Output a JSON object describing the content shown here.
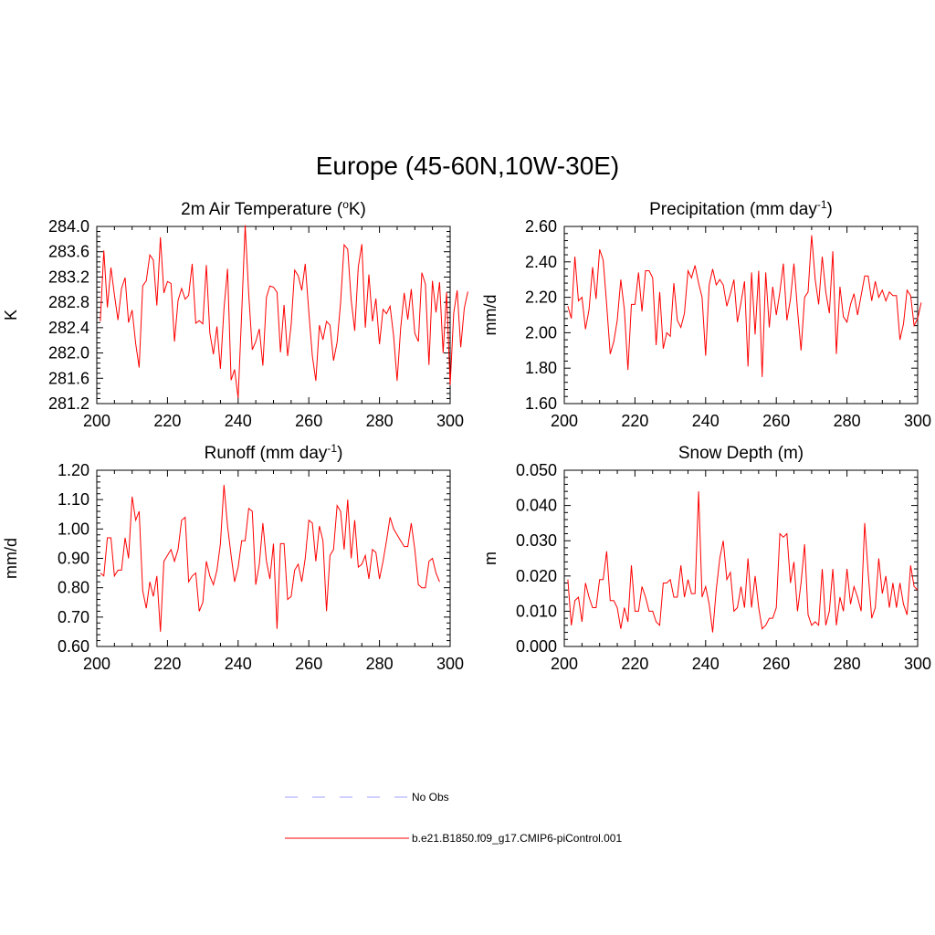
{
  "title": "Europe (45-60N,10W-30E)",
  "legend": [
    {
      "label": "No Obs",
      "color": "#a0a0ff",
      "style": "dashed"
    },
    {
      "label": "b.e21.B1850.f09_g17.CMIP6-piControl.001",
      "color": "#ff0000",
      "style": "solid"
    }
  ],
  "chart_data": [
    {
      "type": "line",
      "title": "2m Air Temperature (oK)",
      "title_parts": {
        "main": "2m Air Temperature (",
        "sup": "o",
        "after": "K)"
      },
      "xlabel": "",
      "ylabel": "K",
      "xlim": [
        200,
        300
      ],
      "ylim": [
        281.2,
        284.0
      ],
      "xticks": [
        "200",
        "220",
        "240",
        "260",
        "280",
        "300"
      ],
      "yticks": [
        "281.2",
        "281.6",
        "282.0",
        "282.4",
        "282.8",
        "283.2",
        "283.6",
        "284.0"
      ],
      "series": [
        {
          "name": "b.e21.B1850.f09_g17.CMIP6-piControl.001",
          "x_start": 201,
          "x_step": 1,
          "values": [
            282.5,
            283.62,
            282.72,
            283.35,
            282.92,
            282.52,
            283.02,
            283.19,
            282.48,
            282.68,
            282.15,
            281.77,
            283.06,
            283.14,
            283.55,
            283.47,
            282.75,
            283.83,
            282.95,
            283.13,
            283.1,
            282.18,
            282.83,
            283.02,
            282.85,
            282.91,
            283.41,
            282.47,
            282.51,
            282.46,
            283.39,
            282.32,
            281.98,
            282.42,
            281.75,
            282.7,
            283.33,
            281.57,
            281.74,
            281.29,
            282.63,
            284.02,
            282.93,
            282.05,
            282.18,
            282.38,
            281.8,
            282.88,
            283.06,
            283.04,
            282.96,
            282.01,
            282.76,
            281.95,
            282.45,
            283.31,
            283.22,
            282.99,
            283.41,
            282.65,
            281.95,
            281.56,
            282.44,
            282.21,
            282.5,
            282.44,
            281.88,
            282.17,
            282.79,
            283.71,
            283.64,
            282.84,
            282.35,
            283.36,
            283.72,
            282.4,
            283.24,
            282.5,
            282.86,
            282.14,
            282.69,
            282.62,
            282.74,
            282.27,
            281.56,
            282.39,
            282.95,
            282.53,
            283.01,
            282.31,
            282.18,
            283.27,
            283.09,
            281.81,
            283.14,
            282.64,
            283.12,
            282.0,
            282.96,
            281.49,
            282.63,
            282.99,
            282.09,
            282.71,
            282.97
          ]
        }
      ]
    },
    {
      "type": "line",
      "title": "Precipitation (mm day-1)",
      "title_parts": {
        "main": "Precipitation (mm day",
        "sup": "-1",
        "after": ")"
      },
      "xlabel": "",
      "ylabel": "mm/d",
      "xlim": [
        200,
        300
      ],
      "ylim": [
        1.6,
        2.6
      ],
      "xticks": [
        "200",
        "220",
        "240",
        "260",
        "280",
        "300"
      ],
      "yticks": [
        "1.60",
        "1.80",
        "2.00",
        "2.20",
        "2.40",
        "2.60"
      ],
      "series": [
        {
          "name": "b.e21.B1850.f09_g17.CMIP6-piControl.001",
          "x_start": 201,
          "x_step": 1,
          "values": [
            2.15,
            2.08,
            2.43,
            2.18,
            2.2,
            2.02,
            2.13,
            2.37,
            2.19,
            2.47,
            2.41,
            2.16,
            1.88,
            1.95,
            2.07,
            2.3,
            2.13,
            1.79,
            2.16,
            2.16,
            2.34,
            2.12,
            2.35,
            2.35,
            2.31,
            1.93,
            2.23,
            1.91,
            2.0,
            1.98,
            2.28,
            2.07,
            2.03,
            2.11,
            2.35,
            2.31,
            2.38,
            2.28,
            2.2,
            1.87,
            2.27,
            2.36,
            2.27,
            2.3,
            2.27,
            2.15,
            2.22,
            2.3,
            2.06,
            2.17,
            2.29,
            1.81,
            2.34,
            1.99,
            2.35,
            1.75,
            2.34,
            2.03,
            2.26,
            2.1,
            2.23,
            2.39,
            2.07,
            2.19,
            2.39,
            2.13,
            1.9,
            2.2,
            2.23,
            2.55,
            2.3,
            2.16,
            2.43,
            2.23,
            2.11,
            2.46,
            1.88,
            2.26,
            2.09,
            2.06,
            2.16,
            2.22,
            2.1,
            2.21,
            2.32,
            2.32,
            2.18,
            2.29,
            2.2,
            2.24,
            2.18,
            2.23,
            2.21,
            2.21,
            1.96,
            2.05,
            2.24,
            2.21,
            2.04,
            2.08,
            2.17
          ]
        }
      ]
    },
    {
      "type": "line",
      "title": "Runoff (mm day-1)",
      "title_parts": {
        "main": "Runoff (mm day",
        "sup": "-1",
        "after": ")"
      },
      "xlabel": "",
      "ylabel": "mm/d",
      "xlim": [
        200,
        300
      ],
      "ylim": [
        0.6,
        1.2
      ],
      "xticks": [
        "200",
        "220",
        "240",
        "260",
        "280",
        "300"
      ],
      "yticks": [
        "0.60",
        "0.70",
        "0.80",
        "0.90",
        "1.00",
        "1.10",
        "1.20"
      ],
      "series": [
        {
          "name": "b.e21.B1850.f09_g17.CMIP6-piControl.001",
          "x_start": 201,
          "x_step": 1,
          "values": [
            0.85,
            0.84,
            0.97,
            0.97,
            0.84,
            0.86,
            0.86,
            0.97,
            0.9,
            1.11,
            1.03,
            1.06,
            0.79,
            0.73,
            0.82,
            0.77,
            0.84,
            0.65,
            0.89,
            0.91,
            0.93,
            0.89,
            0.93,
            1.03,
            1.04,
            0.82,
            0.84,
            0.85,
            0.72,
            0.75,
            0.89,
            0.84,
            0.81,
            0.86,
            0.95,
            1.15,
            1.01,
            0.91,
            0.82,
            0.87,
            0.96,
            0.96,
            1.07,
            1.06,
            0.81,
            0.88,
            1.02,
            0.89,
            0.83,
            0.95,
            0.66,
            0.95,
            0.95,
            0.76,
            0.77,
            0.86,
            0.88,
            0.82,
            0.9,
            1.03,
            1.02,
            0.89,
            1.01,
            0.96,
            0.72,
            0.91,
            0.93,
            1.08,
            1.06,
            0.93,
            1.1,
            0.9,
            1.03,
            0.87,
            0.88,
            0.91,
            0.83,
            0.93,
            0.92,
            0.83,
            0.89,
            0.96,
            1.04,
            1.0,
            0.98,
            0.96,
            0.94,
            0.94,
            1.02,
            0.93,
            0.81,
            0.8,
            0.8,
            0.89,
            0.9,
            0.85,
            0.82
          ]
        }
      ]
    },
    {
      "type": "line",
      "title": "Snow Depth (m)",
      "title_parts": {
        "main": "Snow Depth (m)",
        "sup": "",
        "after": ""
      },
      "xlabel": "",
      "ylabel": "m",
      "xlim": [
        200,
        300
      ],
      "ylim": [
        0.0,
        0.05
      ],
      "xticks": [
        "200",
        "220",
        "240",
        "260",
        "280",
        "300"
      ],
      "yticks": [
        "0.000",
        "0.010",
        "0.020",
        "0.030",
        "0.040",
        "0.050"
      ],
      "series": [
        {
          "name": "b.e21.B1850.f09_g17.CMIP6-piControl.001",
          "x_start": 201,
          "x_step": 1,
          "values": [
            0.019,
            0.006,
            0.013,
            0.014,
            0.007,
            0.018,
            0.014,
            0.011,
            0.011,
            0.019,
            0.019,
            0.027,
            0.013,
            0.013,
            0.011,
            0.005,
            0.011,
            0.007,
            0.023,
            0.01,
            0.01,
            0.017,
            0.014,
            0.01,
            0.01,
            0.007,
            0.006,
            0.018,
            0.018,
            0.019,
            0.014,
            0.014,
            0.023,
            0.014,
            0.019,
            0.015,
            0.015,
            0.044,
            0.014,
            0.017,
            0.012,
            0.004,
            0.016,
            0.025,
            0.03,
            0.019,
            0.021,
            0.01,
            0.011,
            0.017,
            0.011,
            0.025,
            0.011,
            0.02,
            0.011,
            0.005,
            0.006,
            0.008,
            0.008,
            0.011,
            0.032,
            0.031,
            0.032,
            0.018,
            0.024,
            0.01,
            0.018,
            0.029,
            0.009,
            0.006,
            0.007,
            0.006,
            0.022,
            0.006,
            0.01,
            0.022,
            0.006,
            0.014,
            0.01,
            0.022,
            0.012,
            0.017,
            0.014,
            0.01,
            0.035,
            0.021,
            0.008,
            0.011,
            0.025,
            0.015,
            0.02,
            0.011,
            0.018,
            0.011,
            0.018,
            0.012,
            0.009,
            0.023,
            0.017,
            0.016
          ]
        }
      ]
    }
  ]
}
